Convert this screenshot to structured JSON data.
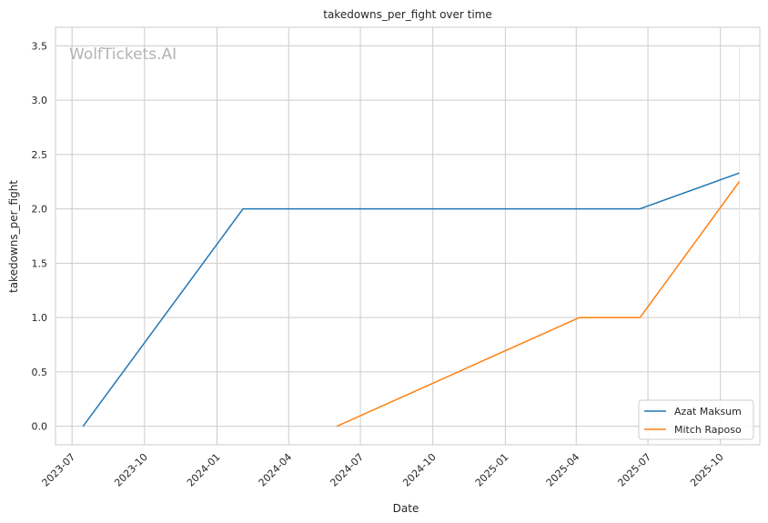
{
  "chart_data": {
    "type": "line",
    "title": "takedowns_per_fight over time",
    "xlabel": "Date",
    "ylabel": "takedowns_per_fight",
    "watermark": "WolfTickets.AI",
    "x_ticks": [
      "2023-07",
      "2023-10",
      "2024-01",
      "2024-04",
      "2024-07",
      "2024-10",
      "2025-01",
      "2025-04",
      "2025-07",
      "2025-10"
    ],
    "y_ticks": [
      "0.0",
      "0.5",
      "1.0",
      "1.5",
      "2.0",
      "2.5",
      "3.0",
      "3.5"
    ],
    "ylim": [
      -0.17,
      3.67
    ],
    "xlim": [
      "2023-06-10",
      "2025-11-20"
    ],
    "grid": true,
    "legend_position": "lower-right",
    "series": [
      {
        "name": "Azat Maksum",
        "color": "#1f77b4",
        "points": [
          {
            "x": "2023-07-15",
            "y": 0.0
          },
          {
            "x": "2024-02-03",
            "y": 2.0
          },
          {
            "x": "2025-06-21",
            "y": 2.0
          },
          {
            "x": "2025-10-25",
            "y": 2.33
          }
        ]
      },
      {
        "name": "Mitch Raposo",
        "color": "#ff7f0e",
        "points": [
          {
            "x": "2024-06-01",
            "y": 0.0
          },
          {
            "x": "2025-04-05",
            "y": 1.0
          },
          {
            "x": "2025-06-21",
            "y": 1.0
          },
          {
            "x": "2025-10-25",
            "y": 2.25
          }
        ]
      }
    ],
    "marker_line": {
      "x": "2025-10-25",
      "y_from": 1.0,
      "y_to": 3.5,
      "color": "#fbe3d0"
    }
  }
}
